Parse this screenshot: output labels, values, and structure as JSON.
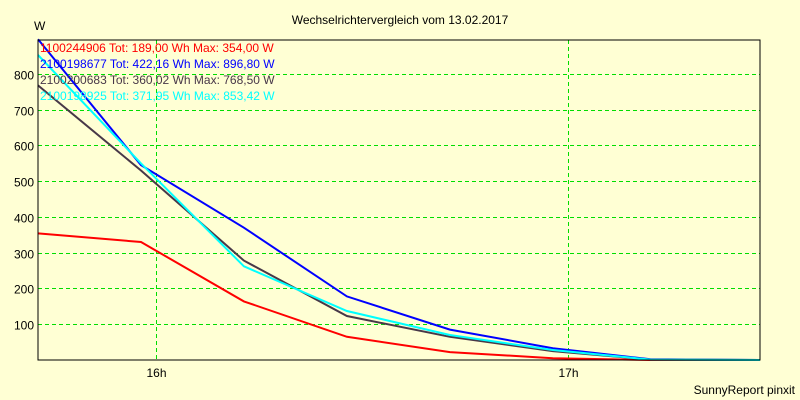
{
  "chart_data": {
    "type": "line",
    "title": "Wechselrichtervergleich vom 13.02.2017",
    "ylabel": "W",
    "xlabel": "",
    "footer": "SunnyReport pinxit",
    "xlim": [
      15.713,
      17.466
    ],
    "ylim": [
      0,
      895
    ],
    "grid": true,
    "legend_placement": "top-left",
    "x_ticks": [
      {
        "value": 16,
        "label": "16h"
      },
      {
        "value": 17,
        "label": "17h"
      }
    ],
    "y_ticks": [
      100,
      200,
      300,
      400,
      500,
      600,
      700,
      800
    ],
    "x": [
      15.713,
      15.963,
      16.213,
      16.463,
      16.713,
      16.963,
      17.2,
      17.466
    ],
    "series": [
      {
        "name": "1100244906",
        "legend": "1100244906 Tot: 189,00 Wh Max: 354,00 W",
        "color": "#FF0000",
        "values": [
          354,
          330,
          164,
          65,
          22,
          5,
          0,
          0
        ]
      },
      {
        "name": "2100198677",
        "legend": "2100198677 Tot: 422,16 Wh Max: 896,80 W",
        "color": "#0000FF",
        "values": [
          897,
          545,
          370,
          178,
          85,
          33,
          2,
          0
        ]
      },
      {
        "name": "2100200683",
        "legend": "2100200683 Tot: 360,02 Wh Max: 768,50 W",
        "color": "#483848",
        "values": [
          768,
          530,
          278,
          123,
          65,
          25,
          1,
          0
        ]
      },
      {
        "name": "2100198925",
        "legend": "2100198925 Tot: 371,95 Wh Max: 853,42 W",
        "color": "#00FFFF",
        "values": [
          853,
          550,
          262,
          137,
          70,
          28,
          1,
          0
        ]
      }
    ],
    "colors": {
      "background": "#FFFFD4",
      "grid": "#00DD00",
      "axis": "#000000"
    }
  }
}
